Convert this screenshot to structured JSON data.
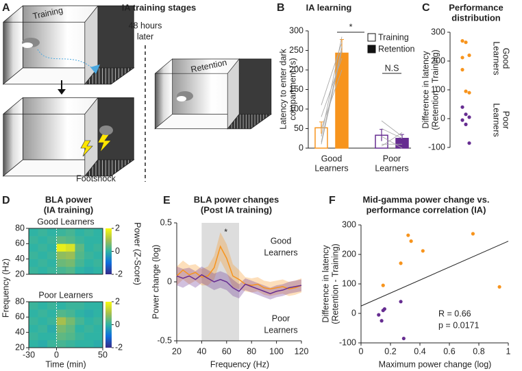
{
  "illustration": {
    "panel_label": "A",
    "title": "IA training stages",
    "labels": {
      "training": "Training",
      "delay": [
        "48 hours",
        "later"
      ],
      "retention": "Retention",
      "shock": "Footshock"
    }
  },
  "chart_data": [
    {
      "type": "bar",
      "panel_label": "B",
      "title": "IA learning",
      "ylabel": [
        "Latency to enter dark",
        "compartment (s)"
      ],
      "categories": [
        [
          "Good",
          "Learners"
        ],
        [
          "Poor",
          "Learners"
        ]
      ],
      "category_colors": [
        "#f7941d",
        "#662d91"
      ],
      "ylim": [
        0,
        300
      ],
      "yticks": [
        0,
        50,
        100,
        150,
        200,
        250,
        300
      ],
      "series": [
        {
          "name": "Training",
          "style": "hollow",
          "values": [
            52,
            33
          ],
          "errors": [
            15,
            15
          ]
        },
        {
          "name": "Retention",
          "style": "filled",
          "values": [
            243,
            25
          ],
          "errors": [
            35,
            10
          ]
        }
      ],
      "subjects": [
        [
          [
            15,
            260
          ],
          [
            30,
            285
          ],
          [
            50,
            200
          ],
          [
            80,
            230
          ],
          [
            110,
            270
          ],
          [
            10,
            250
          ]
        ],
        [
          [
            5,
            40
          ],
          [
            10,
            10
          ],
          [
            30,
            0
          ],
          [
            50,
            25
          ],
          [
            70,
            30
          ]
        ]
      ],
      "significance": [
        "*",
        "N.S"
      ]
    },
    {
      "type": "strip",
      "panel_label": "C",
      "title": [
        "Performance",
        "distribution"
      ],
      "ylabel": [
        "Difference in latency",
        "(Retention - Training)"
      ],
      "ylim": [
        -100,
        300
      ],
      "yticks": [
        300,
        200,
        100,
        0,
        -100
      ],
      "groups": [
        {
          "name": [
            "Good",
            "Learners"
          ],
          "color": "#f7941d",
          "values": [
            270,
            265,
            220,
            170,
            95,
            90,
            212
          ]
        },
        {
          "name": [
            "Poor",
            "Learners"
          ],
          "color": "#662d91",
          "values": [
            40,
            15,
            5,
            -5,
            -20,
            -85
          ]
        }
      ]
    },
    {
      "type": "heatmap",
      "panel_label": "D",
      "title": [
        "BLA power",
        "(IA training)"
      ],
      "xlabel": "Time (min)",
      "ylabel": "Frequency (Hz)",
      "xlim": [
        -30,
        50
      ],
      "xticks": [
        -30,
        0,
        50
      ],
      "ylim": [
        20,
        80
      ],
      "yticks": [
        20,
        40,
        60,
        80
      ],
      "colorbar": {
        "label": "Power (Z-Score)",
        "lim": [
          -2,
          2
        ],
        "ticks": [
          2,
          0,
          -2
        ],
        "colors": [
          "#352a87",
          "#0f6ddc",
          "#2fb3a4",
          "#a6bf4e",
          "#f9fb0e"
        ]
      },
      "maps": [
        {
          "name": "Good Learners",
          "color": "#f7941d",
          "values": [
            [
              0.1,
              0,
              0.1,
              0.2,
              0.3,
              0,
              -0.1,
              0
            ],
            [
              0,
              0.1,
              0,
              0.5,
              0.6,
              0.2,
              0,
              0.1
            ],
            [
              0.1,
              0,
              0.1,
              0.8,
              0.9,
              0.3,
              0.1,
              0
            ],
            [
              0,
              0.1,
              0,
              1.8,
              1.6,
              0.4,
              0,
              0.1
            ],
            [
              0.1,
              0,
              0.1,
              0.4,
              0.3,
              0.1,
              0,
              0
            ],
            [
              0,
              0.1,
              0,
              0.1,
              0.2,
              0,
              0.1,
              0
            ]
          ]
        },
        {
          "name": "Poor Learners",
          "color": "#662d91",
          "values": [
            [
              0,
              -0.1,
              0.1,
              0.2,
              0.1,
              0,
              0,
              -0.1
            ],
            [
              0.1,
              0,
              0,
              0.4,
              0.3,
              0.1,
              0,
              0
            ],
            [
              0,
              0.1,
              -0.1,
              0.6,
              0.4,
              0,
              0.1,
              0
            ],
            [
              0.1,
              0,
              0.1,
              1.0,
              0.6,
              0.2,
              0,
              0.1
            ],
            [
              0,
              0.1,
              0,
              0.3,
              0.2,
              0,
              -0.1,
              0
            ],
            [
              0.1,
              0,
              0.1,
              0,
              0.1,
              0.1,
              0,
              0
            ]
          ]
        }
      ]
    },
    {
      "type": "line",
      "panel_label": "E",
      "title": [
        "BLA power changes",
        "(Post IA training)"
      ],
      "xlabel": "Frequency (Hz)",
      "ylabel": "Power change (log)",
      "x": [
        20,
        25,
        30,
        35,
        40,
        45,
        50,
        55,
        60,
        65,
        70,
        75,
        80,
        85,
        90,
        95,
        100,
        105,
        110,
        115,
        120
      ],
      "xlim": [
        20,
        120
      ],
      "xticks": [
        20,
        40,
        60,
        80,
        100,
        120
      ],
      "ylim": [
        -0.5,
        0.5
      ],
      "yticks": [
        0.5,
        0,
        -0.5
      ],
      "highlight": [
        40,
        70
      ],
      "annotation": "*",
      "series": [
        {
          "name": [
            "Good",
            "Learners"
          ],
          "color": "#f7941d",
          "values": [
            0.05,
            0.1,
            0.06,
            0.08,
            0.04,
            0.05,
            0.12,
            0.3,
            0.2,
            0.05,
            0.02,
            -0.02,
            -0.03,
            -0.02,
            -0.05,
            -0.06,
            -0.05,
            -0.04,
            -0.06,
            -0.05,
            -0.03
          ],
          "errors": [
            0.08,
            0.08,
            0.08,
            0.07,
            0.07,
            0.08,
            0.1,
            0.12,
            0.12,
            0.1,
            0.08,
            0.06,
            0.06,
            0.06,
            0.06,
            0.06,
            0.06,
            0.06,
            0.06,
            0.06,
            0.06
          ]
        },
        {
          "name": [
            "Poor",
            "Learners"
          ],
          "color": "#662d91",
          "values": [
            0.05,
            0.03,
            0.05,
            0.02,
            0.06,
            0.03,
            0.0,
            0.02,
            0.0,
            -0.05,
            -0.08,
            -0.02,
            -0.04,
            -0.06,
            -0.08,
            -0.1,
            -0.08,
            -0.07,
            -0.05,
            -0.04,
            -0.03
          ],
          "errors": [
            0.08,
            0.08,
            0.07,
            0.07,
            0.07,
            0.07,
            0.07,
            0.07,
            0.07,
            0.07,
            0.06,
            0.05,
            0.05,
            0.05,
            0.05,
            0.05,
            0.05,
            0.05,
            0.05,
            0.05,
            0.05
          ]
        }
      ]
    },
    {
      "type": "scatter",
      "panel_label": "F",
      "title": [
        "Mid-gamma power change vs.",
        "performance correlation (IA)"
      ],
      "xlabel": "Maximum power change (log)",
      "ylabel": [
        "Difference in latency",
        "(Retention - Training)"
      ],
      "xlim": [
        0,
        1
      ],
      "xticks": [
        0,
        0.2,
        0.4,
        0.6,
        0.8,
        1
      ],
      "ylim": [
        -100,
        300
      ],
      "yticks": [
        300,
        200,
        100,
        0,
        -100
      ],
      "series": [
        {
          "color": "#f7941d",
          "x": [
            0.15,
            0.27,
            0.32,
            0.34,
            0.42,
            0.76,
            0.94
          ],
          "values": [
            95,
            170,
            265,
            245,
            212,
            270,
            90
          ]
        },
        {
          "color": "#662d91",
          "x": [
            0.12,
            0.14,
            0.15,
            0.16,
            0.27,
            0.29
          ],
          "values": [
            -5,
            -25,
            10,
            15,
            40,
            -85
          ]
        }
      ],
      "fit": {
        "x": [
          0,
          1
        ],
        "values": [
          25,
          245
        ]
      },
      "stats": [
        "R = 0.66",
        "p = 0.0171"
      ]
    }
  ]
}
